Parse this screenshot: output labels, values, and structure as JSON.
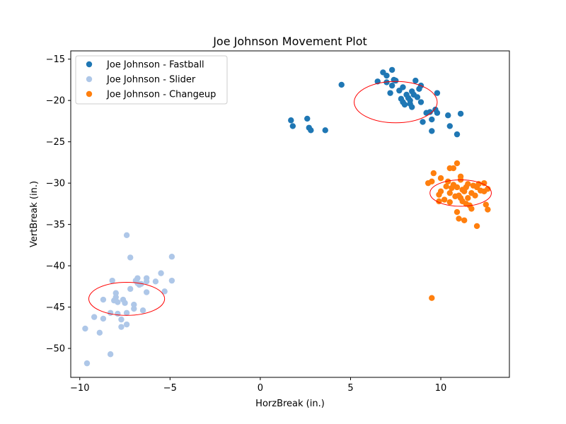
{
  "chart_data": {
    "type": "scatter",
    "title": "Joe Johnson Movement Plot",
    "xlabel": "HorzBreak (in.)",
    "ylabel": "VertBreak (in.)",
    "xlim": [
      -10.5,
      13.8
    ],
    "ylim": [
      -53.5,
      -14.0
    ],
    "xticks": [
      -10,
      -5,
      0,
      5,
      10
    ],
    "yticks": [
      -15,
      -20,
      -25,
      -30,
      -35,
      -40,
      -45,
      -50
    ],
    "grid": false,
    "legend_position": "upper-left",
    "series": [
      {
        "name": "Joe Johnson - Fastball",
        "color": "#1f77b4",
        "points": [
          [
            1.7,
            -22.4
          ],
          [
            1.8,
            -23.1
          ],
          [
            2.6,
            -22.2
          ],
          [
            2.7,
            -23.3
          ],
          [
            2.8,
            -23.6
          ],
          [
            3.6,
            -23.6
          ],
          [
            4.5,
            -18.1
          ],
          [
            6.5,
            -17.7
          ],
          [
            6.8,
            -16.6
          ],
          [
            7.0,
            -17.0
          ],
          [
            7.0,
            -17.8
          ],
          [
            7.3,
            -16.3
          ],
          [
            7.4,
            -17.5
          ],
          [
            7.3,
            -18.2
          ],
          [
            7.2,
            -19.1
          ],
          [
            7.5,
            -17.6
          ],
          [
            7.7,
            -18.8
          ],
          [
            7.9,
            -18.4
          ],
          [
            7.8,
            -19.8
          ],
          [
            7.9,
            -20.2
          ],
          [
            8.0,
            -20.5
          ],
          [
            8.1,
            -19.3
          ],
          [
            8.2,
            -19.7
          ],
          [
            8.3,
            -20.0
          ],
          [
            8.3,
            -20.4
          ],
          [
            8.4,
            -18.9
          ],
          [
            8.4,
            -20.8
          ],
          [
            8.5,
            -19.3
          ],
          [
            8.6,
            -17.6
          ],
          [
            8.7,
            -19.6
          ],
          [
            8.8,
            -18.6
          ],
          [
            8.9,
            -18.2
          ],
          [
            8.9,
            -20.2
          ],
          [
            9.0,
            -22.6
          ],
          [
            9.2,
            -21.5
          ],
          [
            9.4,
            -21.4
          ],
          [
            9.5,
            -22.3
          ],
          [
            9.5,
            -23.7
          ],
          [
            9.7,
            -21.1
          ],
          [
            9.8,
            -21.5
          ],
          [
            9.8,
            -19.1
          ],
          [
            10.4,
            -21.8
          ],
          [
            10.5,
            -23.1
          ],
          [
            10.9,
            -24.1
          ],
          [
            11.1,
            -21.6
          ]
        ]
      },
      {
        "name": "Joe Johnson - Slider",
        "color": "#aec7e8",
        "points": [
          [
            -9.7,
            -47.6
          ],
          [
            -9.6,
            -51.8
          ],
          [
            -9.2,
            -46.2
          ],
          [
            -8.9,
            -48.1
          ],
          [
            -8.7,
            -46.4
          ],
          [
            -8.7,
            -44.1
          ],
          [
            -8.3,
            -45.7
          ],
          [
            -8.3,
            -50.7
          ],
          [
            -8.2,
            -41.8
          ],
          [
            -8.1,
            -44.2
          ],
          [
            -8.0,
            -43.3
          ],
          [
            -8.0,
            -43.8
          ],
          [
            -7.9,
            -45.8
          ],
          [
            -7.9,
            -44.4
          ],
          [
            -7.7,
            -46.5
          ],
          [
            -7.7,
            -47.4
          ],
          [
            -7.6,
            -44.1
          ],
          [
            -7.5,
            -44.5
          ],
          [
            -7.4,
            -36.3
          ],
          [
            -7.4,
            -45.7
          ],
          [
            -7.4,
            -47.1
          ],
          [
            -7.2,
            -39.0
          ],
          [
            -7.2,
            -42.8
          ],
          [
            -7.0,
            -45.2
          ],
          [
            -7.0,
            -44.7
          ],
          [
            -6.9,
            -41.8
          ],
          [
            -6.8,
            -42.1
          ],
          [
            -6.8,
            -41.5
          ],
          [
            -6.7,
            -42.3
          ],
          [
            -6.6,
            -42.2
          ],
          [
            -6.5,
            -45.4
          ],
          [
            -6.3,
            -43.2
          ],
          [
            -6.3,
            -41.5
          ],
          [
            -6.3,
            -41.9
          ],
          [
            -5.8,
            -41.9
          ],
          [
            -5.5,
            -40.9
          ],
          [
            -5.3,
            -43.1
          ],
          [
            -4.9,
            -41.8
          ],
          [
            -4.9,
            -38.9
          ]
        ]
      },
      {
        "name": "Joe Johnson - Changeup",
        "color": "#ff7f0e",
        "points": [
          [
            9.3,
            -30.0
          ],
          [
            9.5,
            -29.8
          ],
          [
            9.6,
            -28.8
          ],
          [
            9.5,
            -43.9
          ],
          [
            9.9,
            -31.4
          ],
          [
            9.9,
            -32.2
          ],
          [
            10.0,
            -29.4
          ],
          [
            10.0,
            -31.0
          ],
          [
            10.2,
            -32.0
          ],
          [
            10.3,
            -30.4
          ],
          [
            10.4,
            -29.8
          ],
          [
            10.5,
            -28.2
          ],
          [
            10.5,
            -31.2
          ],
          [
            10.5,
            -32.3
          ],
          [
            10.6,
            -30.6
          ],
          [
            10.7,
            -28.2
          ],
          [
            10.7,
            -30.2
          ],
          [
            10.8,
            -31.6
          ],
          [
            10.9,
            -27.6
          ],
          [
            10.9,
            -30.5
          ],
          [
            10.9,
            -33.5
          ],
          [
            11.0,
            -34.3
          ],
          [
            11.0,
            -31.5
          ],
          [
            11.1,
            -29.2
          ],
          [
            11.1,
            -29.6
          ],
          [
            11.1,
            -31.8
          ],
          [
            11.2,
            -30.8
          ],
          [
            11.2,
            -32.2
          ],
          [
            11.3,
            -31.0
          ],
          [
            11.3,
            -34.5
          ],
          [
            11.4,
            -30.5
          ],
          [
            11.4,
            -32.5
          ],
          [
            11.5,
            -31.8
          ],
          [
            11.5,
            -30.1
          ],
          [
            11.6,
            -32.7
          ],
          [
            11.7,
            -31.2
          ],
          [
            11.8,
            -30.3
          ],
          [
            11.9,
            -31.5
          ],
          [
            12.0,
            -30.5
          ],
          [
            12.0,
            -35.2
          ],
          [
            12.1,
            -30.1
          ],
          [
            12.2,
            -30.9
          ],
          [
            12.4,
            -31.0
          ],
          [
            12.4,
            -30.0
          ],
          [
            12.5,
            -32.6
          ],
          [
            12.6,
            -30.7
          ],
          [
            12.6,
            -33.2
          ],
          [
            11.7,
            -33.1
          ]
        ]
      }
    ],
    "ellipses": [
      {
        "series": "Joe Johnson - Fastball",
        "center": [
          7.5,
          -20.2
        ],
        "radius_x": 2.3,
        "radius_y": 2.5,
        "color": "#ff0000"
      },
      {
        "series": "Joe Johnson - Slider",
        "center": [
          -7.4,
          -44.0
        ],
        "radius_x": 2.1,
        "radius_y": 2.0,
        "color": "#ff0000"
      },
      {
        "series": "Joe Johnson - Changeup",
        "center": [
          11.1,
          -31.2
        ],
        "radius_x": 1.7,
        "radius_y": 1.6,
        "color": "#ff0000"
      }
    ]
  }
}
